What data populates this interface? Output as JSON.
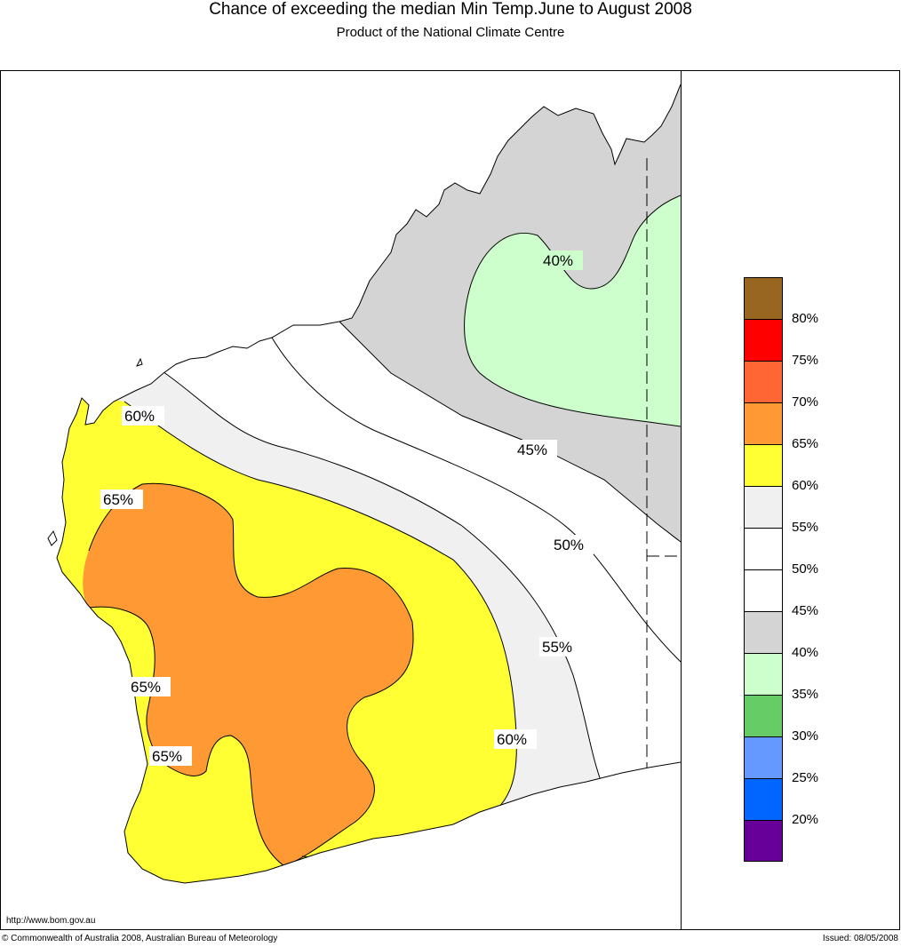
{
  "header": {
    "title": "Chance of exceeding the median Min Temp.June to August 2008",
    "subtitle": "Product of the National Climate Centre"
  },
  "map": {
    "region": "Western Australia",
    "contour_labels": [
      "40%",
      "45%",
      "50%",
      "55%",
      "60%",
      "60%",
      "65%",
      "65%",
      "65%"
    ],
    "region_colors": {
      "35-40": "#ccffcc",
      "40-45": "#d4d4d4",
      "45-55": "#ffffff",
      "55-60": "#f0f0f0",
      "60-65": "#ffff33",
      "65-70": "#ff9933"
    }
  },
  "legend": {
    "swatches": [
      {
        "color": "#996622"
      },
      {
        "color": "#ff0000"
      },
      {
        "color": "#ff6633"
      },
      {
        "color": "#ff9933"
      },
      {
        "color": "#ffff33"
      },
      {
        "color": "#f0f0f0"
      },
      {
        "color": "#ffffff"
      },
      {
        "color": "#ffffff"
      },
      {
        "color": "#d4d4d4"
      },
      {
        "color": "#ccffcc"
      },
      {
        "color": "#66cc66"
      },
      {
        "color": "#6699ff"
      },
      {
        "color": "#0066ff"
      },
      {
        "color": "#660099"
      }
    ],
    "labels": [
      "80%",
      "75%",
      "70%",
      "65%",
      "60%",
      "55%",
      "50%",
      "45%",
      "40%",
      "35%",
      "30%",
      "25%",
      "20%"
    ]
  },
  "footer": {
    "url": "http://www.bom.gov.au",
    "copyright": "© Commonwealth of Australia 2008, Australian Bureau of Meteorology",
    "issued": "Issued: 08/05/2008"
  }
}
